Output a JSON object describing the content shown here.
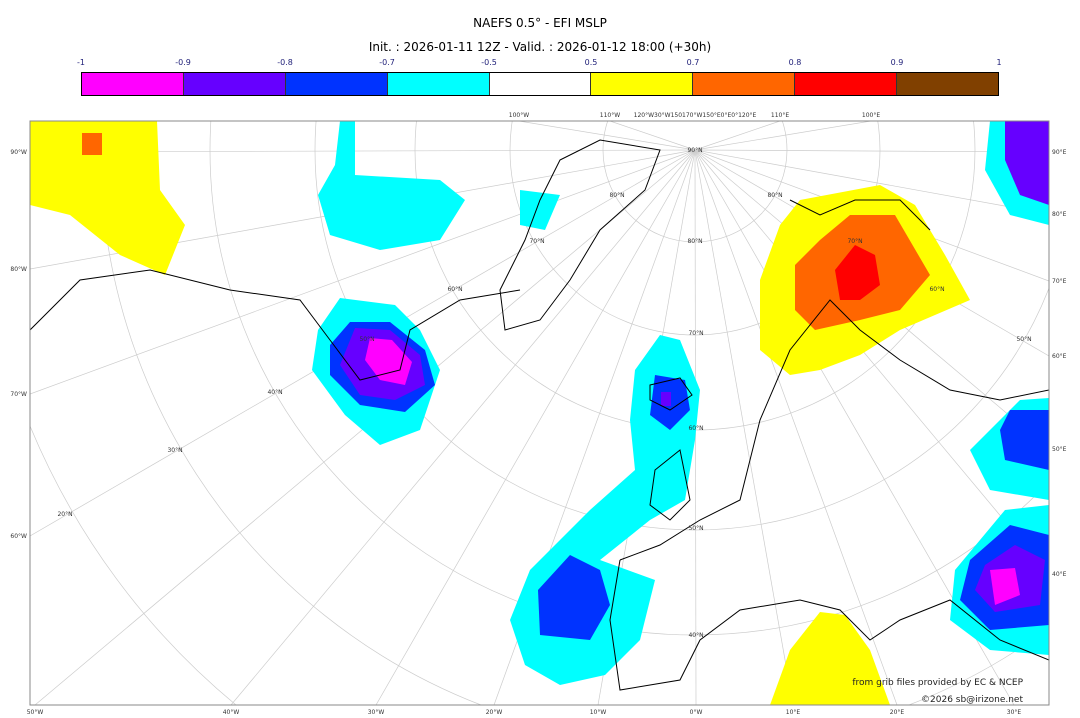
{
  "title": "NAEFS 0.5° - EFI MSLP",
  "subtitle": "Init. : 2026-01-11 12Z - Valid. : 2026-01-12 18:00 (+30h)",
  "colorbar": {
    "ticks": [
      "-1",
      "-0.9",
      "-0.8",
      "-0.7",
      "-0.5",
      "0.5",
      "0.7",
      "0.8",
      "0.9",
      "1"
    ],
    "colors": [
      "#ff00ff",
      "#6600ff",
      "#0033ff",
      "#00ffff",
      "#ffffff",
      "#ffff00",
      "#ff6600",
      "#ff0000",
      "#804000"
    ]
  },
  "axes": {
    "left": [
      "90°W",
      "80°W",
      "70°W",
      "60°W"
    ],
    "right": [
      "90°E",
      "80°E",
      "70°E",
      "60°E",
      "50°E",
      "40°E"
    ],
    "bottom": [
      "50°W",
      "40°W",
      "30°W",
      "20°W",
      "10°W",
      "0°W",
      "10°E",
      "20°E",
      "30°E"
    ],
    "top": [
      "100°W",
      "110°W",
      "120°W30°W150170°W150°E0°E0°120°E",
      "110°E",
      "100°E"
    ],
    "inner": [
      "90°N",
      "80°N",
      "80°N",
      "80°N",
      "70°N",
      "70°N",
      "70°N",
      "60°N",
      "60°N",
      "60°N",
      "50°N",
      "50°N",
      "50°N",
      "40°N",
      "40°N",
      "30°N",
      "20°N"
    ]
  },
  "credits": {
    "line1": "from grib files provided by EC & NCEP",
    "line2": "©2026 sb@irizone.net"
  }
}
